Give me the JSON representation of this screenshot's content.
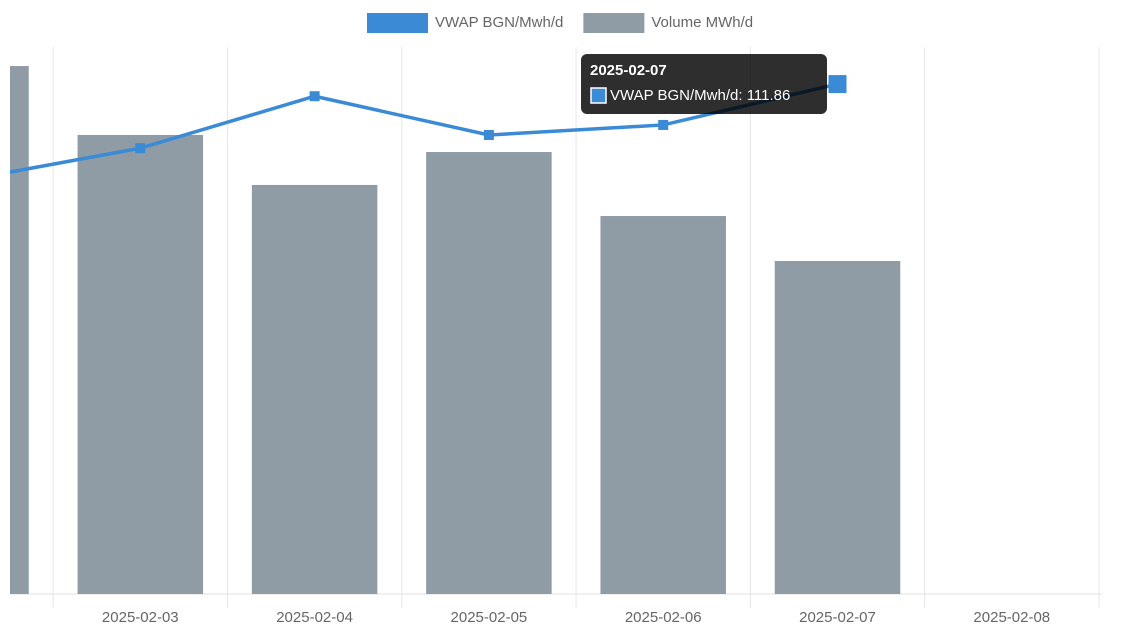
{
  "chart_data": {
    "type": "bar-line",
    "categories": [
      null,
      "2025-02-03",
      "2025-02-04",
      "2025-02-05",
      "2025-02-06",
      "2025-02-07",
      "2025-02-08"
    ],
    "series": [
      {
        "name": "VWAP BGN/Mwh/d",
        "type": "line",
        "axis": "y2",
        "color": "#3a8ad6",
        "values": [
          90.8,
          97.8,
          109.2,
          100.7,
          102.9,
          111.86,
          null
        ]
      },
      {
        "name": "Volume MWh/d",
        "type": "bar",
        "color": "#8f9ca6",
        "values": [
          4826,
          4196,
          3739,
          4040,
          3455,
          3044,
          null
        ]
      }
    ],
    "ylim": [
      0,
      5000
    ],
    "y2lim": [
      0,
      120
    ],
    "grid": true,
    "legend": "top",
    "tooltip": {
      "title": "2025-02-07",
      "label": "VWAP BGN/Mwh/d: 111.86"
    }
  }
}
